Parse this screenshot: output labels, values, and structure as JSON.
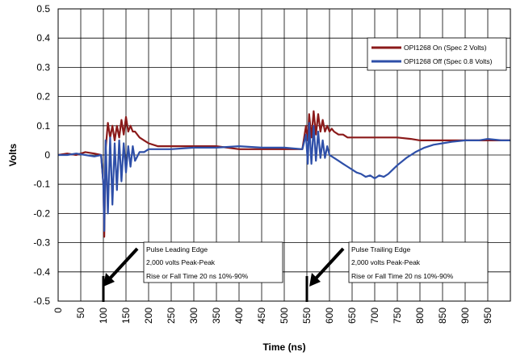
{
  "chart_data": {
    "type": "line",
    "title": "",
    "xlabel": "Time (ns)",
    "ylabel": "Volts",
    "xlim": [
      0,
      1000
    ],
    "ylim": [
      -0.5,
      0.5
    ],
    "grid": true,
    "legend_position": "top-right",
    "x_ticks": [
      "0",
      "50",
      "100",
      "150",
      "200",
      "250",
      "300",
      "350",
      "400",
      "450",
      "500",
      "550",
      "600",
      "650",
      "700",
      "750",
      "800",
      "850",
      "900",
      "950"
    ],
    "y_ticks": [
      "0.5",
      "0.4",
      "0.3",
      "0.2",
      "0.1",
      "0",
      "-0.1",
      "-0.2",
      "-0.3",
      "-0.4",
      "-0.5"
    ],
    "series": [
      {
        "name": "OPI1268 On (Spec 2 Volts)",
        "color": "#8b1a1a",
        "x": [
          0,
          20,
          40,
          60,
          80,
          95,
          100,
          102,
          105,
          110,
          115,
          120,
          125,
          130,
          135,
          140,
          145,
          150,
          155,
          160,
          165,
          170,
          180,
          190,
          200,
          220,
          250,
          300,
          350,
          400,
          450,
          500,
          540,
          548,
          552,
          555,
          560,
          565,
          570,
          575,
          580,
          585,
          590,
          595,
          600,
          605,
          610,
          620,
          630,
          640,
          650,
          660,
          680,
          700,
          720,
          750,
          780,
          800,
          830,
          850,
          880,
          900,
          930,
          950,
          980,
          1000
        ],
        "y": [
          0.0,
          0.005,
          0.0,
          0.01,
          0.005,
          0.0,
          -0.1,
          -0.28,
          0.02,
          0.11,
          0.06,
          0.1,
          0.05,
          0.1,
          0.06,
          0.12,
          0.07,
          0.13,
          0.08,
          0.1,
          0.08,
          0.08,
          0.06,
          0.05,
          0.04,
          0.03,
          0.03,
          0.03,
          0.03,
          0.02,
          0.02,
          0.02,
          0.02,
          0.1,
          0.05,
          0.14,
          0.06,
          0.15,
          0.07,
          0.14,
          0.08,
          0.12,
          0.08,
          0.1,
          0.08,
          0.09,
          0.08,
          0.07,
          0.07,
          0.06,
          0.06,
          0.06,
          0.06,
          0.06,
          0.06,
          0.06,
          0.055,
          0.05,
          0.05,
          0.05,
          0.05,
          0.05,
          0.05,
          0.05,
          0.05,
          0.05
        ]
      },
      {
        "name": "OPI1268 Off (Spec 0.8 Volts)",
        "color": "#2e4fa8",
        "x": [
          0,
          20,
          40,
          60,
          80,
          95,
          100,
          102,
          105,
          110,
          115,
          120,
          125,
          130,
          135,
          140,
          145,
          150,
          155,
          160,
          165,
          170,
          180,
          190,
          200,
          220,
          250,
          300,
          350,
          400,
          450,
          500,
          540,
          548,
          552,
          555,
          560,
          565,
          570,
          575,
          580,
          585,
          590,
          595,
          600,
          610,
          620,
          630,
          640,
          650,
          660,
          670,
          680,
          690,
          700,
          710,
          720,
          730,
          740,
          750,
          770,
          790,
          810,
          830,
          850,
          870,
          900,
          930,
          950,
          980,
          1000
        ],
        "y": [
          0.0,
          0.0,
          0.005,
          0.0,
          -0.005,
          0.0,
          -0.1,
          -0.26,
          0.05,
          -0.2,
          0.06,
          -0.17,
          0.04,
          -0.12,
          0.05,
          -0.09,
          0.04,
          -0.06,
          0.03,
          -0.04,
          0.03,
          -0.02,
          0.01,
          0.01,
          0.02,
          0.02,
          0.02,
          0.025,
          0.025,
          0.03,
          0.025,
          0.025,
          0.02,
          0.07,
          -0.03,
          0.11,
          -0.03,
          0.1,
          -0.02,
          0.08,
          -0.01,
          0.05,
          -0.01,
          0.03,
          0.0,
          -0.01,
          -0.02,
          -0.03,
          -0.04,
          -0.05,
          -0.06,
          -0.065,
          -0.075,
          -0.07,
          -0.08,
          -0.07,
          -0.075,
          -0.065,
          -0.05,
          -0.035,
          -0.01,
          0.01,
          0.025,
          0.035,
          0.04,
          0.045,
          0.05,
          0.05,
          0.055,
          0.05,
          0.05
        ]
      }
    ],
    "annotations": [
      {
        "lines": [
          "Pulse Leading Edge",
          "2,000 volts Peak-Peak",
          "Rise or Fall Time 20 ns 10%-90%"
        ],
        "marker_x": 100
      },
      {
        "lines": [
          "Pulse Trailing Edge",
          "2,000 volts Peak-Peak",
          "Rise or Fall Time 20 ns 10%-90%"
        ],
        "marker_x": 550
      }
    ]
  }
}
